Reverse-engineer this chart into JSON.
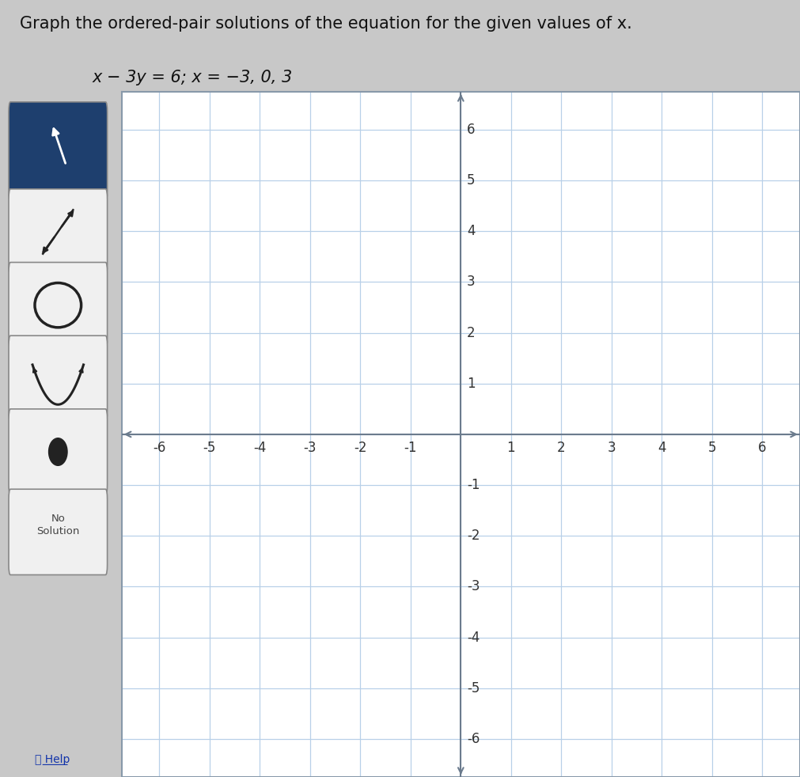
{
  "title_line1": "Graph the ordered-pair solutions of the equation for the given values of x.",
  "title_line2": "x − 3y = 6; x = −3, 0, 3",
  "axis_range": [
    -6,
    6
  ],
  "grid_color": "#b8d0e8",
  "axis_color": "#6b7b8d",
  "tick_label_color": "#333333",
  "background_color": "#ffffff",
  "outer_bg": "#c8c8c8",
  "panel_bg": "#cccccc",
  "graph_bg": "#ffffff",
  "graph_border_color": "#8899aa",
  "title_fontsize": 15,
  "equation_fontsize": 15,
  "tick_fontsize": 12,
  "btn_dark_blue": "#1e3f6e",
  "btn_light": "#f0f0f0",
  "btn_border": "#888888"
}
